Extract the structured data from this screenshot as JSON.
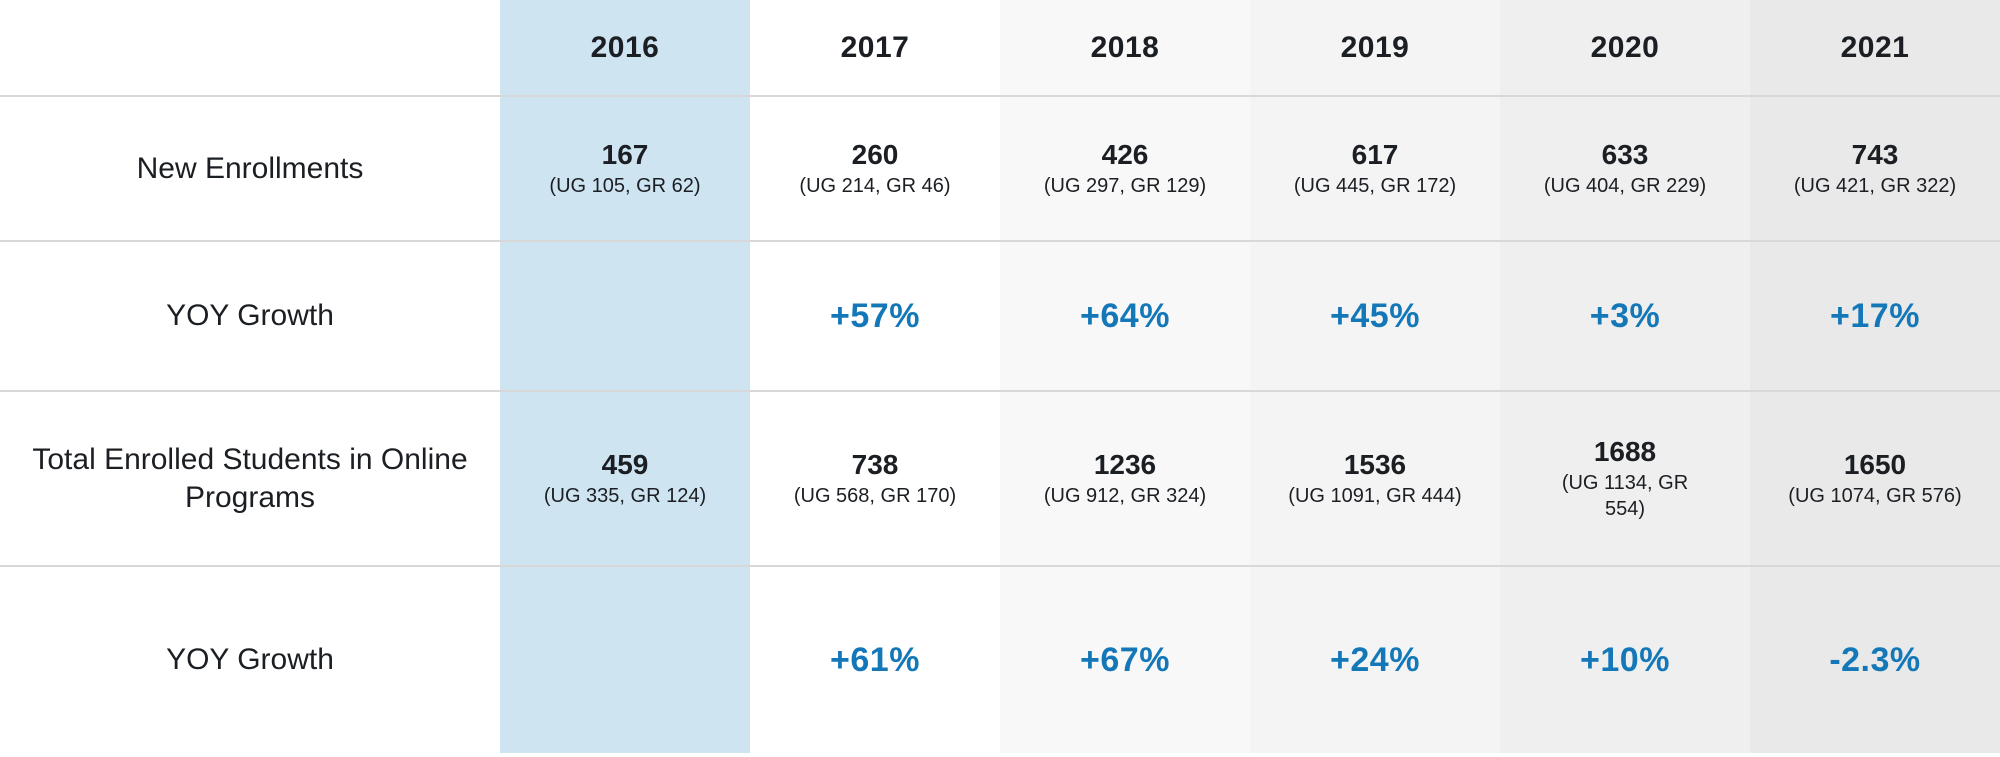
{
  "colors": {
    "accent_blue": "#1478b8",
    "highlight_column_bg": "#cee4f1",
    "divider": "#d8d8d8",
    "text_dark": "#1b1e22"
  },
  "table": {
    "years": [
      "2016",
      "2017",
      "2018",
      "2019",
      "2020",
      "2021"
    ],
    "highlighted_year": "2016",
    "column_colors": [
      "#cee4f1",
      "#ffffff",
      "#f8f8f8",
      "#f4f4f4",
      "#efefef",
      "#e9e9e9"
    ],
    "rows": [
      {
        "label": "New Enrollments",
        "cells": [
          {
            "value": "167",
            "sub": "(UG 105, GR 62)"
          },
          {
            "value": "260",
            "sub": "(UG 214, GR 46)"
          },
          {
            "value": "426",
            "sub": "(UG 297, GR 129)"
          },
          {
            "value": "617",
            "sub": "(UG 445, GR 172)"
          },
          {
            "value": "633",
            "sub": "(UG 404, GR 229)"
          },
          {
            "value": "743",
            "sub": "(UG 421, GR 322)"
          }
        ]
      },
      {
        "label": "YOY Growth",
        "cells": [
          {
            "value": ""
          },
          {
            "value": "+57%"
          },
          {
            "value": "+64%"
          },
          {
            "value": "+45%"
          },
          {
            "value": "+3%"
          },
          {
            "value": "+17%"
          }
        ]
      },
      {
        "label": "Total Enrolled Students in Online Programs",
        "cells": [
          {
            "value": "459",
            "sub": "(UG 335, GR 124)"
          },
          {
            "value": "738",
            "sub": "(UG 568, GR 170)"
          },
          {
            "value": "1236",
            "sub": "(UG 912, GR 324)"
          },
          {
            "value": "1536",
            "sub": "(UG 1091, GR 444)"
          },
          {
            "value": "1688",
            "sub": "(UG 1134, GR\n554)"
          },
          {
            "value": "1650",
            "sub": "(UG 1074, GR 576)"
          }
        ]
      },
      {
        "label": "YOY Growth",
        "cells": [
          {
            "value": ""
          },
          {
            "value": "+61%"
          },
          {
            "value": "+67%"
          },
          {
            "value": "+24%"
          },
          {
            "value": "+10%"
          },
          {
            "value": "-2.3%"
          }
        ]
      }
    ]
  },
  "chart_data": {
    "type": "table",
    "columns": [
      "",
      "2016",
      "2017",
      "2018",
      "2019",
      "2020",
      "2021"
    ],
    "rows": [
      [
        "New Enrollments",
        "167 (UG 105, GR 62)",
        "260 (UG 214, GR 46)",
        "426 (UG 297, GR 129)",
        "617 (UG 445, GR 172)",
        "633 (UG 404, GR 229)",
        "743 (UG 421, GR 322)"
      ],
      [
        "YOY Growth",
        "",
        "+57%",
        "+64%",
        "+45%",
        "+3%",
        "+17%"
      ],
      [
        "Total Enrolled Students in Online Programs",
        "459 (UG 335, GR 124)",
        "738 (UG 568, GR 170)",
        "1236 (UG 912, GR 324)",
        "1536 (UG 1091, GR 444)",
        "1688 (UG 1134, GR 554)",
        "1650 (UG 1074, GR 576)"
      ],
      [
        "YOY Growth",
        "",
        "+61%",
        "+67%",
        "+24%",
        "+10%",
        "-2.3%"
      ]
    ],
    "x": [
      2016,
      2017,
      2018,
      2019,
      2020,
      2021
    ],
    "series": [
      {
        "name": "New Enrollments total",
        "values": [
          167,
          260,
          426,
          617,
          633,
          743
        ]
      },
      {
        "name": "New Enrollments UG",
        "values": [
          105,
          214,
          297,
          445,
          404,
          421
        ]
      },
      {
        "name": "New Enrollments GR",
        "values": [
          62,
          46,
          129,
          172,
          229,
          322
        ]
      },
      {
        "name": "New Enrollments YOY Growth %",
        "values": [
          null,
          57,
          64,
          45,
          3,
          17
        ]
      },
      {
        "name": "Total Enrolled Students total",
        "values": [
          459,
          738,
          1236,
          1536,
          1688,
          1650
        ]
      },
      {
        "name": "Total Enrolled Students UG",
        "values": [
          335,
          568,
          912,
          1091,
          1134,
          1074
        ]
      },
      {
        "name": "Total Enrolled Students GR",
        "values": [
          124,
          170,
          324,
          444,
          554,
          576
        ]
      },
      {
        "name": "Total Enrolled YOY Growth %",
        "values": [
          null,
          61,
          67,
          24,
          10,
          -2.3
        ]
      }
    ],
    "title": "",
    "grid": "horizontal dividers only",
    "legend": "none"
  }
}
